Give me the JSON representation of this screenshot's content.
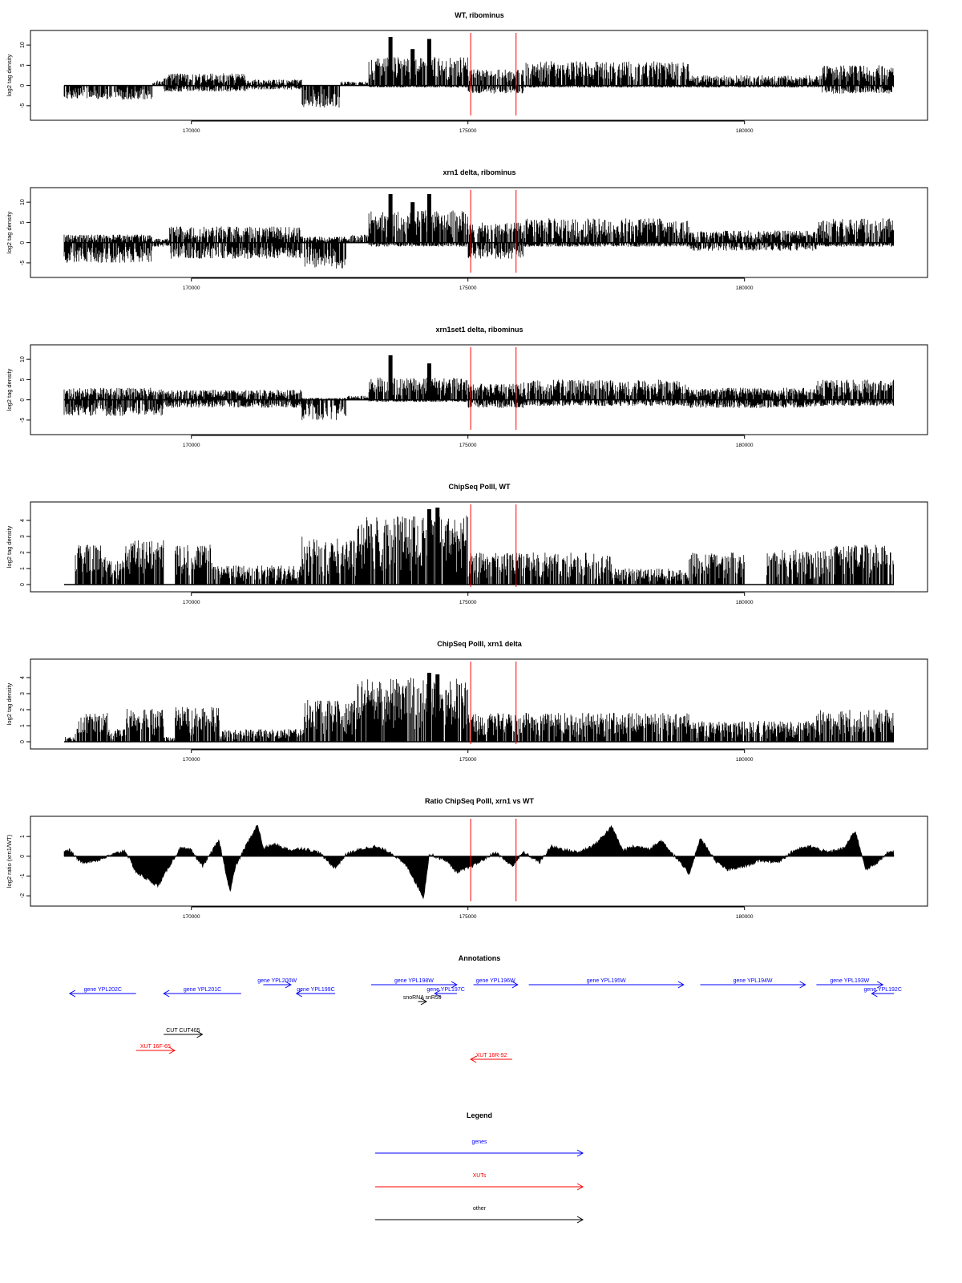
{
  "chart_data": [
    {
      "type": "bar",
      "title": "WT, ribominus",
      "ylabel": "log2 tag density",
      "xlabel": "",
      "xlim": [
        167700,
        182700
      ],
      "ylim": [
        -8,
        13
      ],
      "yticks": [
        -5,
        0,
        5,
        10
      ],
      "xticks": [
        170000,
        175000,
        180000
      ],
      "vlines": [
        175050,
        175870
      ],
      "profile": [
        {
          "from": 167700,
          "to": 169300,
          "plus": 0,
          "minus": -3.5
        },
        {
          "from": 169300,
          "to": 169500,
          "plus": 1.5,
          "minus": 0
        },
        {
          "from": 169500,
          "to": 171000,
          "plus": 3,
          "minus": -1.5
        },
        {
          "from": 171000,
          "to": 172000,
          "plus": 1.5,
          "minus": -1
        },
        {
          "from": 172000,
          "to": 172700,
          "plus": 0,
          "minus": -5.5
        },
        {
          "from": 172700,
          "to": 173200,
          "plus": 1,
          "minus": 0
        },
        {
          "from": 173200,
          "to": 175000,
          "plus": 7,
          "minus": -0.5
        },
        {
          "from": 175000,
          "to": 176000,
          "plus": 4,
          "minus": -2
        },
        {
          "from": 176000,
          "to": 179000,
          "plus": 6,
          "minus": -0.5
        },
        {
          "from": 179000,
          "to": 181400,
          "plus": 2.5,
          "minus": -0.5
        },
        {
          "from": 181400,
          "to": 182700,
          "plus": 5,
          "minus": -2
        }
      ],
      "peaks": [
        {
          "x": 173600,
          "y": 12
        },
        {
          "x": 174000,
          "y": 9
        },
        {
          "x": 174300,
          "y": 11.5
        }
      ]
    },
    {
      "type": "bar",
      "title": "xrn1 delta, ribominus",
      "ylabel": "log2 tag density",
      "xlabel": "",
      "xlim": [
        167700,
        182700
      ],
      "ylim": [
        -8,
        13
      ],
      "yticks": [
        -5,
        0,
        5,
        10
      ],
      "xticks": [
        170000,
        175000,
        180000
      ],
      "vlines": [
        175050,
        175870
      ],
      "profile": [
        {
          "from": 167700,
          "to": 169300,
          "plus": 2,
          "minus": -5
        },
        {
          "from": 169300,
          "to": 169600,
          "plus": 1,
          "minus": -1
        },
        {
          "from": 169600,
          "to": 172000,
          "plus": 4,
          "minus": -4
        },
        {
          "from": 172000,
          "to": 172800,
          "plus": 1.5,
          "minus": -6.5
        },
        {
          "from": 172800,
          "to": 173200,
          "plus": 2,
          "minus": 0
        },
        {
          "from": 173200,
          "to": 175000,
          "plus": 8,
          "minus": -1
        },
        {
          "from": 175000,
          "to": 176000,
          "plus": 5,
          "minus": -4
        },
        {
          "from": 176000,
          "to": 179000,
          "plus": 6,
          "minus": -1
        },
        {
          "from": 179000,
          "to": 181300,
          "plus": 3,
          "minus": -2
        },
        {
          "from": 181300,
          "to": 182700,
          "plus": 6,
          "minus": -1
        }
      ],
      "peaks": [
        {
          "x": 173600,
          "y": 12
        },
        {
          "x": 174000,
          "y": 10
        },
        {
          "x": 174300,
          "y": 12
        }
      ]
    },
    {
      "type": "bar",
      "title": "xrn1set1 delta, ribominus",
      "ylabel": "log2 tag density",
      "xlabel": "",
      "xlim": [
        167700,
        182700
      ],
      "ylim": [
        -8,
        13
      ],
      "yticks": [
        -5,
        0,
        5,
        10
      ],
      "xticks": [
        170000,
        175000,
        180000
      ],
      "vlines": [
        175050,
        175870
      ],
      "profile": [
        {
          "from": 167700,
          "to": 169500,
          "plus": 3,
          "minus": -4
        },
        {
          "from": 169500,
          "to": 172000,
          "plus": 2.5,
          "minus": -2
        },
        {
          "from": 172000,
          "to": 172800,
          "plus": 0.5,
          "minus": -5
        },
        {
          "from": 172800,
          "to": 173200,
          "plus": 1,
          "minus": 0
        },
        {
          "from": 173200,
          "to": 175000,
          "plus": 5.5,
          "minus": -0.5
        },
        {
          "from": 175000,
          "to": 176000,
          "plus": 4,
          "minus": -2
        },
        {
          "from": 176000,
          "to": 179000,
          "plus": 5,
          "minus": -1.5
        },
        {
          "from": 179000,
          "to": 181300,
          "plus": 3,
          "minus": -2
        },
        {
          "from": 181300,
          "to": 182700,
          "plus": 5,
          "minus": -1.5
        }
      ],
      "peaks": [
        {
          "x": 173600,
          "y": 11
        },
        {
          "x": 174300,
          "y": 9
        }
      ]
    },
    {
      "type": "bar",
      "title": "ChipSeq PolII, WT",
      "ylabel": "log2 tag density",
      "xlabel": "",
      "xlim": [
        167700,
        182700
      ],
      "ylim": [
        -0.3,
        5
      ],
      "yticks": [
        0,
        1,
        2,
        3,
        4
      ],
      "xticks": [
        170000,
        175000,
        180000
      ],
      "vlines": [
        175050,
        175870
      ],
      "profile": [
        {
          "from": 167700,
          "to": 167900,
          "plus": 0,
          "minus": 0
        },
        {
          "from": 167900,
          "to": 168500,
          "plus": 2.5,
          "minus": 0
        },
        {
          "from": 168500,
          "to": 168800,
          "plus": 1.5,
          "minus": 0
        },
        {
          "from": 168800,
          "to": 169500,
          "plus": 2.8,
          "minus": 0
        },
        {
          "from": 169500,
          "to": 169700,
          "plus": 0,
          "minus": 0
        },
        {
          "from": 169700,
          "to": 170400,
          "plus": 2.5,
          "minus": 0
        },
        {
          "from": 170400,
          "to": 171400,
          "plus": 1.2,
          "minus": 0
        },
        {
          "from": 171400,
          "to": 172000,
          "plus": 1.2,
          "minus": 0
        },
        {
          "from": 172000,
          "to": 173000,
          "plus": 3,
          "minus": 0
        },
        {
          "from": 173000,
          "to": 175000,
          "plus": 4.3,
          "minus": 0
        },
        {
          "from": 175000,
          "to": 176000,
          "plus": 2,
          "minus": 0
        },
        {
          "from": 176000,
          "to": 177600,
          "plus": 2,
          "minus": 0
        },
        {
          "from": 177600,
          "to": 179000,
          "plus": 1,
          "minus": 0
        },
        {
          "from": 179000,
          "to": 180000,
          "plus": 2,
          "minus": 0
        },
        {
          "from": 180000,
          "to": 180400,
          "plus": 0,
          "minus": 0
        },
        {
          "from": 180400,
          "to": 181300,
          "plus": 2.2,
          "minus": 0
        },
        {
          "from": 181300,
          "to": 182700,
          "plus": 2.5,
          "minus": 0
        }
      ],
      "peaks": [
        {
          "x": 174300,
          "y": 4.7
        },
        {
          "x": 174450,
          "y": 4.8
        }
      ]
    },
    {
      "type": "bar",
      "title": "ChipSeq PolII, xrn1 delta",
      "ylabel": "log2 tag density",
      "xlabel": "",
      "xlim": [
        167700,
        182700
      ],
      "ylim": [
        -0.3,
        5
      ],
      "yticks": [
        0,
        1,
        2,
        3,
        4
      ],
      "xticks": [
        170000,
        175000,
        180000
      ],
      "vlines": [
        175050,
        175870
      ],
      "profile": [
        {
          "from": 167700,
          "to": 167900,
          "plus": 0.3,
          "minus": 0
        },
        {
          "from": 167900,
          "to": 168500,
          "plus": 1.8,
          "minus": 0
        },
        {
          "from": 168500,
          "to": 168800,
          "plus": 0.8,
          "minus": 0
        },
        {
          "from": 168800,
          "to": 169500,
          "plus": 2.2,
          "minus": 0
        },
        {
          "from": 169500,
          "to": 169700,
          "plus": 0.3,
          "minus": 0
        },
        {
          "from": 169700,
          "to": 170500,
          "plus": 2.2,
          "minus": 0
        },
        {
          "from": 170500,
          "to": 172000,
          "plus": 0.8,
          "minus": 0
        },
        {
          "from": 172000,
          "to": 173000,
          "plus": 2.6,
          "minus": 0
        },
        {
          "from": 173000,
          "to": 175000,
          "plus": 4,
          "minus": 0
        },
        {
          "from": 175000,
          "to": 176000,
          "plus": 1.8,
          "minus": 0
        },
        {
          "from": 176000,
          "to": 179000,
          "plus": 1.8,
          "minus": 0
        },
        {
          "from": 179000,
          "to": 181300,
          "plus": 1.3,
          "minus": 0
        },
        {
          "from": 181300,
          "to": 182700,
          "plus": 2,
          "minus": 0
        }
      ],
      "peaks": [
        {
          "x": 174300,
          "y": 4.3
        },
        {
          "x": 174450,
          "y": 4.2
        }
      ]
    },
    {
      "type": "area",
      "title": "Ratio ChipSeq PolII, xrn1 vs WT",
      "ylabel": "log2 ratio (xrn1/WT)",
      "xlabel": "",
      "xlim": [
        167700,
        182700
      ],
      "ylim": [
        -2.4,
        1.9
      ],
      "yticks": [
        -2,
        -1,
        0,
        1
      ],
      "xticks": [
        170000,
        175000,
        180000
      ],
      "vlines": [
        175050,
        175870
      ],
      "x": [
        167800,
        168000,
        168300,
        168800,
        169000,
        169400,
        169600,
        169800,
        170000,
        170200,
        170500,
        170700,
        170800,
        171000,
        171200,
        171300,
        171500,
        171800,
        172000,
        172300,
        172600,
        172800,
        173000,
        173300,
        173600,
        173900,
        174200,
        174300,
        174600,
        174800,
        175000,
        175200,
        175500,
        175800,
        176000,
        176300,
        176500,
        176800,
        177000,
        177300,
        177600,
        177800,
        178000,
        178300,
        178500,
        178800,
        179000,
        179200,
        179500,
        179700,
        180000,
        180300,
        180600,
        180900,
        181200,
        181500,
        181800,
        182000,
        182200,
        182400,
        182600
      ],
      "y": [
        0.3,
        -0.3,
        -0.2,
        0.3,
        -0.8,
        -1.5,
        -0.5,
        0.4,
        0.3,
        -0.5,
        0.8,
        -1.8,
        -0.5,
        0.6,
        1.6,
        0.4,
        0.6,
        0.3,
        0.4,
        0.2,
        -0.6,
        0.1,
        0.3,
        0.5,
        0.2,
        -0.5,
        -2.1,
        0.1,
        -0.2,
        -0.8,
        -0.6,
        -0.3,
        0.2,
        -0.5,
        0.2,
        -0.3,
        0.5,
        0.3,
        0.2,
        0.6,
        1.5,
        0.3,
        0.5,
        0.4,
        0.8,
        -0.2,
        -0.9,
        0.9,
        -0.3,
        -0.7,
        -0.5,
        -0.2,
        -0.3,
        0.3,
        0.5,
        0.2,
        0.4,
        1.3,
        -0.7,
        -0.3,
        0.2
      ]
    }
  ],
  "annotations": {
    "title": "Annotations",
    "items": [
      {
        "label": "gene YPL202C",
        "start": 169000,
        "end": 167800,
        "row": 2,
        "color": "#0000ff"
      },
      {
        "label": "gene YPL201C",
        "start": 170900,
        "end": 169500,
        "row": 2,
        "color": "#0000ff"
      },
      {
        "label": "gene YPL200W",
        "start": 171300,
        "end": 171800,
        "row": 1,
        "color": "#0000ff"
      },
      {
        "label": "gene YPL199C",
        "start": 172600,
        "end": 171900,
        "row": 2,
        "color": "#0000ff"
      },
      {
        "label": "gene YPL198W",
        "start": 173250,
        "end": 174800,
        "row": 1,
        "color": "#0000ff"
      },
      {
        "label": "gene YPL197C",
        "start": 174800,
        "end": 174400,
        "row": 2,
        "color": "#0000ff"
      },
      {
        "label": "snoRNA snR59",
        "start": 174100,
        "end": 174250,
        "row": 3,
        "color": "#000000"
      },
      {
        "label": "gene YPL196W",
        "start": 175100,
        "end": 175900,
        "row": 1,
        "color": "#0000ff"
      },
      {
        "label": "gene YPL195W",
        "start": 176100,
        "end": 178900,
        "row": 1,
        "color": "#0000ff"
      },
      {
        "label": "gene YPL194W",
        "start": 179200,
        "end": 181100,
        "row": 1,
        "color": "#0000ff"
      },
      {
        "label": "gene YPL193W",
        "start": 181300,
        "end": 182500,
        "row": 1,
        "color": "#0000ff"
      },
      {
        "label": "gene YPL192C",
        "start": 182700,
        "end": 182300,
        "row": 2,
        "color": "#0000ff"
      },
      {
        "label": "CUT CUT405",
        "start": 169500,
        "end": 170200,
        "row": 5,
        "color": "#000000"
      },
      {
        "label": "XUT 16F-65",
        "start": 169000,
        "end": 169700,
        "row": 6,
        "color": "#ff0000"
      },
      {
        "label": "XUT 16R-92",
        "start": 175800,
        "end": 175050,
        "row": 7,
        "color": "#ff0000"
      }
    ]
  },
  "legend": {
    "title": "Legend",
    "items": [
      {
        "label": "genes",
        "color": "#0000ff"
      },
      {
        "label": "XUTs",
        "color": "#ff0000"
      },
      {
        "label": "other",
        "color": "#000000"
      }
    ]
  }
}
